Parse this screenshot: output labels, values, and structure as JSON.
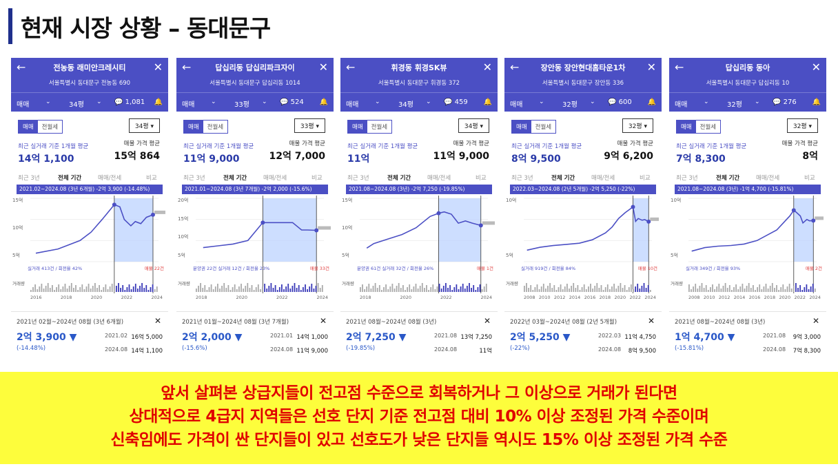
{
  "slide": {
    "title": "현재 시장 상황 – 동대문구",
    "banner": [
      "앞서 살펴본 상급지들이 전고점 수준으로 회복하거나 그 이상으로 거래가 된다면",
      "상대적으로 4급지 지역들은 선호 단지 기준 전고점 대비 10% 이상 조정된 가격 수준이며",
      "신축임에도 가격이 싼 단지들이 있고 선호도가 낮은 단지들 역시도 15% 이상 조정된 가격 수준"
    ]
  },
  "common": {
    "deal_type": "매매",
    "toggle_sale": "매매",
    "toggle_rent": "전월세",
    "recent_label": "최근 실거래 기준 1개월 평균",
    "listing_label": "매물 가격 평균",
    "tab_3y": "최근 3년",
    "tab_all": "전체 기간",
    "tab_rent": "매매/전세",
    "tab_compare": "비교",
    "volume_label": "거래량",
    "close": "✕"
  },
  "panels": [
    {
      "name": "전농동 래미안크레시티",
      "address": "서울특별시 동대문구 전농동 690",
      "size": "34평",
      "comments": "1,081",
      "recent_price": "14억 1,100",
      "listing_price": "15억 864",
      "range_label": "2021.02~2024.08 (3년 6개월) -2억 3,900 (-14.48%)",
      "y_ticks": [
        "15억",
        "10억",
        "5억"
      ],
      "x_ticks": [
        "2016",
        "2018",
        "2020",
        "2022",
        "2024"
      ],
      "deal_note": "실거래 413건 / 회전율 42%",
      "listing_note": "매물 22건",
      "period": "2021년 02월~2024년 08월 (3년 6개월)",
      "change": "2억 3,900 ▼",
      "change_pct": "(-14.48%)",
      "date1": "2021.02",
      "price1": "16억 5,000",
      "date2": "2024.08",
      "price2": "14억 1,100"
    },
    {
      "name": "답십리동 답십리파크자이",
      "address": "서울특별시 동대문구 답십리동 1014",
      "size": "33평",
      "comments": "524",
      "recent_price": "11억 9,000",
      "listing_price": "12억 7,000",
      "range_label": "2021.01~2024.08 (3년 7개월) -2억 2,000 (-15.6%)",
      "y_ticks": [
        "20억",
        "15억",
        "10억",
        "5억"
      ],
      "x_ticks": [
        "2018",
        "2020",
        "2022",
        "2024"
      ],
      "deal_note": "분양권 22건 실거래 12건 / 회전율 23%",
      "listing_note": "매물 33건",
      "period": "2021년 01월~2024년 08월 (3년 7개월)",
      "change": "2억 2,000 ▼",
      "change_pct": "(-15.6%)",
      "date1": "2021.01",
      "price1": "14억 1,000",
      "date2": "2024.08",
      "price2": "11억 9,000"
    },
    {
      "name": "휘경동 휘경SK뷰",
      "address": "서울특별시 동대문구 휘경동 372",
      "size": "34평",
      "comments": "459",
      "recent_price": "11억",
      "listing_price": "11억 9,000",
      "range_label": "2021.08~2024.08 (3년) -2억 7,250 (-19.85%)",
      "y_ticks": [
        "15억",
        "10억",
        "5억"
      ],
      "x_ticks": [
        "2018",
        "2020",
        "2022",
        "2024"
      ],
      "deal_note": "분양권 61건 실거래 32건 / 회전율 26%",
      "listing_note": "매물 1건",
      "period": "2021년 08월~2024년 08월 (3년)",
      "change": "2억 7,250 ▼",
      "change_pct": "(-19.85%)",
      "date1": "2021.08",
      "price1": "13억 7,250",
      "date2": "2024.08",
      "price2": "11억"
    },
    {
      "name": "장안동 장안현대홈타운1차",
      "address": "서울특별시 동대문구 장안동 336",
      "size": "32평",
      "comments": "600",
      "recent_price": "8억 9,500",
      "listing_price": "9억 6,200",
      "range_label": "2022.03~2024.08 (2년 5개월) -2억 5,250 (-22%)",
      "y_ticks": [
        "10억",
        "5억"
      ],
      "x_ticks": [
        "2008",
        "2010",
        "2012",
        "2014",
        "2016",
        "2018",
        "2020",
        "2022",
        "2024"
      ],
      "deal_note": "실거래 919건 / 회전율 84%",
      "listing_note": "매물 10건",
      "period": "2022년 03월~2024년 08월 (2년 5개월)",
      "change": "2억 5,250 ▼",
      "change_pct": "(-22%)",
      "date1": "2022.03",
      "price1": "11억 4,750",
      "date2": "2024.08",
      "price2": "8억 9,500"
    },
    {
      "name": "답십리동 동아",
      "address": "서울특별시 동대문구 답십리동 10",
      "size": "32평",
      "comments": "276",
      "recent_price": "7억 8,300",
      "listing_price": "8억",
      "range_label": "2021.08~2024.08 (3년) -1억 4,700 (-15.81%)",
      "y_ticks": [
        "10억",
        "5억"
      ],
      "x_ticks": [
        "2008",
        "2010",
        "2012",
        "2014",
        "2016",
        "2018",
        "2020",
        "2022",
        "2024"
      ],
      "deal_note": "실거래 349건 / 회전율 93%",
      "listing_note": "매물 2건",
      "period": "2021년 08월~2024년 08월 (3년)",
      "change": "1억 4,700 ▼",
      "change_pct": "(-15.81%)",
      "date1": "2021.08",
      "price1": "9억 3,000",
      "date2": "2024.08",
      "price2": "7억 8,300"
    }
  ],
  "colors": {
    "accent": "#4b4fc4",
    "price_blue": "#2a58c8",
    "banner_bg": "#fdfd3c",
    "banner_text": "#e00000",
    "range_fill": "#bcd3ff"
  },
  "chart_data": [
    {
      "type": "line",
      "series": [
        {
          "x": [
            2014,
            2016,
            2018,
            2019,
            2020,
            2021.1,
            2021.6,
            2022,
            2022.6,
            2023,
            2023.5,
            2024,
            2024.6
          ],
          "values": [
            5,
            6,
            8,
            10,
            13,
            16.5,
            16,
            13,
            11.5,
            12.5,
            12,
            13.5,
            14.11
          ]
        }
      ],
      "ylim": [
        3,
        18
      ],
      "highlight": [
        2021.1,
        2024.6
      ],
      "annotations": [
        {
          "x": 2021.1,
          "y": 16.5
        },
        {
          "x": 2024.6,
          "y": 14.11
        }
      ]
    },
    {
      "type": "line",
      "series": [
        {
          "x": [
            2017,
            2018,
            2019,
            2020,
            2021.0,
            2021.5,
            2022,
            2023,
            2023.6,
            2024,
            2024.6
          ],
          "values": [
            7,
            7.5,
            8,
            9,
            14.1,
            14.1,
            14.1,
            14.1,
            12,
            12,
            11.9
          ]
        }
      ],
      "ylim": [
        3,
        21
      ],
      "highlight": [
        2021.0,
        2024.6
      ],
      "annotations": [
        {
          "x": 2021.0,
          "y": 14.1
        },
        {
          "x": 2024.6,
          "y": 11.9
        }
      ]
    },
    {
      "type": "line",
      "series": [
        {
          "x": [
            2016.5,
            2017,
            2018,
            2019,
            2020,
            2021,
            2021.6,
            2022,
            2022.5,
            2023,
            2023.5,
            2024,
            2024.6
          ],
          "values": [
            6,
            7,
            8,
            9,
            10.5,
            13,
            13.7,
            14,
            13.5,
            11.5,
            12,
            11.5,
            11
          ]
        }
      ],
      "ylim": [
        3,
        17
      ],
      "highlight": [
        2021.6,
        2024.6
      ],
      "annotations": [
        {
          "x": 2021.6,
          "y": 13.7
        },
        {
          "x": 2024.6,
          "y": 11
        }
      ]
    },
    {
      "type": "line",
      "series": [
        {
          "x": [
            2006,
            2008,
            2010,
            2012,
            2014,
            2016,
            2018,
            2019,
            2020,
            2021,
            2022.2,
            2022.6,
            2023,
            2023.6,
            2024,
            2024.6
          ],
          "values": [
            4,
            4.5,
            4.8,
            5,
            5.2,
            5.8,
            7,
            8,
            9.5,
            10.5,
            11.5,
            9,
            9.5,
            9.2,
            9.3,
            8.95
          ]
        }
      ],
      "ylim": [
        2,
        13
      ],
      "highlight": [
        2022.2,
        2024.6
      ],
      "annotations": [
        {
          "x": 2022.2,
          "y": 11.5
        },
        {
          "x": 2024.6,
          "y": 8.95
        }
      ]
    },
    {
      "type": "line",
      "series": [
        {
          "x": [
            2006,
            2008,
            2010,
            2012,
            2014,
            2016,
            2018,
            2019,
            2020,
            2021,
            2021.6,
            2022,
            2022.6,
            2023,
            2023.6,
            2024,
            2024.6
          ],
          "values": [
            3.5,
            4,
            4.2,
            4.3,
            4.5,
            5,
            6,
            6.5,
            7.5,
            8.5,
            9.3,
            9,
            8.5,
            7.5,
            8,
            7.8,
            7.83
          ]
        }
      ],
      "ylim": [
        2,
        11
      ],
      "highlight": [
        2021.6,
        2024.6
      ],
      "annotations": [
        {
          "x": 2021.6,
          "y": 9.3
        },
        {
          "x": 2024.6,
          "y": 7.83
        }
      ]
    }
  ]
}
